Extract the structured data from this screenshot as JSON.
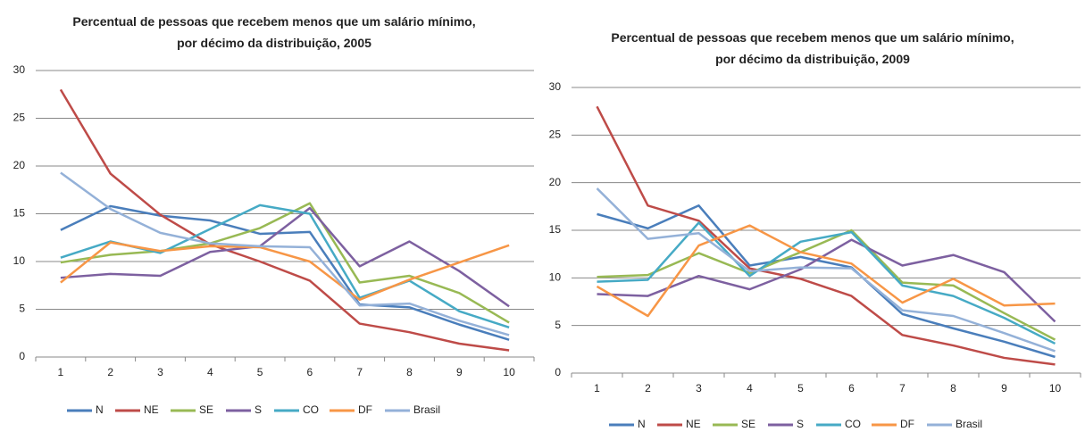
{
  "chart_data": [
    {
      "type": "line",
      "title": "Percentual de pessoas que recebem menos que um salário mínimo, por décimo da distribuição, 2005",
      "categories": [
        1,
        2,
        3,
        4,
        5,
        6,
        7,
        8,
        9,
        10
      ],
      "ylim": [
        0,
        30
      ],
      "yticks": [
        0,
        5,
        10,
        15,
        20,
        25,
        30
      ],
      "grid": true,
      "legend": "bottom",
      "series": [
        {
          "name": "N",
          "color": "#4a7ebb",
          "values": [
            13.3,
            15.8,
            14.8,
            14.3,
            12.9,
            13.1,
            5.5,
            5.2,
            3.4,
            1.8
          ]
        },
        {
          "name": "NE",
          "color": "#be4b48",
          "values": [
            28,
            19.2,
            14.9,
            11.8,
            10,
            8,
            3.5,
            2.6,
            1.4,
            0.7
          ]
        },
        {
          "name": "SE",
          "color": "#98b954",
          "values": [
            9.9,
            10.7,
            11.1,
            11.9,
            13.5,
            16.1,
            7.8,
            8.5,
            6.7,
            3.6
          ]
        },
        {
          "name": "S",
          "color": "#7d60a0",
          "values": [
            8.3,
            8.7,
            8.5,
            11,
            11.6,
            15.6,
            9.5,
            12.1,
            9,
            5.3
          ]
        },
        {
          "name": "CO",
          "color": "#46aac5",
          "values": [
            10.4,
            12.1,
            10.9,
            13.4,
            15.9,
            15,
            6.2,
            8,
            4.8,
            3.1
          ]
        },
        {
          "name": "DF",
          "color": "#f79646",
          "values": [
            7.8,
            12,
            11.1,
            11.6,
            11.5,
            10,
            6,
            8.1,
            9.9,
            11.7
          ]
        },
        {
          "name": "Brasil",
          "color": "#94b1d8",
          "values": [
            19.3,
            15.5,
            13,
            11.9,
            11.6,
            11.5,
            5.4,
            5.6,
            3.8,
            2.3
          ]
        }
      ]
    },
    {
      "type": "line",
      "title": "Percentual de pessoas que recebem menos que um salário mínimo, por décimo da distribuição, 2009",
      "categories": [
        1,
        2,
        3,
        4,
        5,
        6,
        7,
        8,
        9,
        10
      ],
      "ylim": [
        0,
        30
      ],
      "yticks": [
        0,
        5,
        10,
        15,
        20,
        25,
        30
      ],
      "grid": true,
      "legend": "bottom",
      "series": [
        {
          "name": "N",
          "color": "#4a7ebb",
          "values": [
            16.7,
            15.2,
            17.6,
            11.3,
            12.2,
            11.1,
            6.2,
            4.7,
            3.3,
            1.7
          ]
        },
        {
          "name": "NE",
          "color": "#be4b48",
          "values": [
            28,
            17.6,
            16,
            11,
            9.9,
            8.1,
            4,
            2.9,
            1.6,
            0.9
          ]
        },
        {
          "name": "SE",
          "color": "#98b954",
          "values": [
            10.1,
            10.3,
            12.6,
            10.5,
            12.7,
            15,
            9.5,
            9.2,
            6.3,
            3.5
          ]
        },
        {
          "name": "S",
          "color": "#7d60a0",
          "values": [
            8.3,
            8.1,
            10.2,
            8.8,
            10.9,
            14,
            11.3,
            12.4,
            10.6,
            5.4
          ]
        },
        {
          "name": "CO",
          "color": "#46aac5",
          "values": [
            9.6,
            9.8,
            15.8,
            10.2,
            13.8,
            14.8,
            9.2,
            8.1,
            5.8,
            3.1
          ]
        },
        {
          "name": "DF",
          "color": "#f79646",
          "values": [
            9.1,
            6,
            13.4,
            15.5,
            12.7,
            11.5,
            7.4,
            9.9,
            7.1,
            7.3
          ]
        },
        {
          "name": "Brasil",
          "color": "#94b1d8",
          "values": [
            19.4,
            14.1,
            14.7,
            10.7,
            11.1,
            11,
            6.6,
            6,
            4.2,
            2.3
          ]
        }
      ]
    }
  ]
}
